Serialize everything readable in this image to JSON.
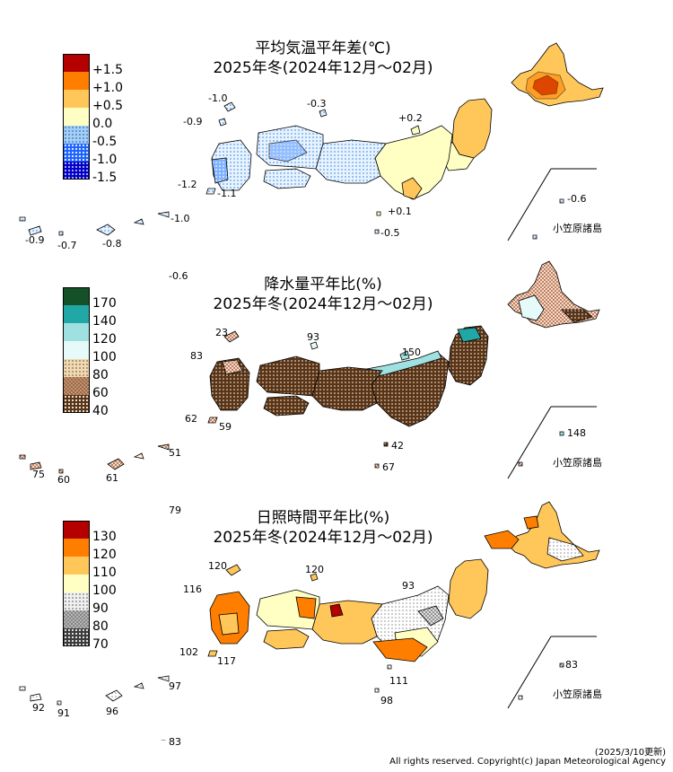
{
  "footer": {
    "date": "(2025/3/10更新)",
    "copyright": "All rights reserved. Copyright(c) Japan Meteorological Agency"
  },
  "ogasawara_label": "小笠原諸島",
  "panels": {
    "temp": {
      "title_line1": "平均気温平年差(℃)",
      "title_line2": "2025年冬(2024年12月〜02月)",
      "legend": [
        {
          "label": "+1.5",
          "color": "#b40000",
          "pattern": "solid"
        },
        {
          "label": "+1.0",
          "color": "#ff7e00",
          "pattern": "solid"
        },
        {
          "label": "+0.5",
          "color": "#ffc659",
          "pattern": "solid"
        },
        {
          "label": "0.0",
          "color": "#ffffc4",
          "pattern": "solid"
        },
        {
          "label": "-0.5",
          "color": "#9fd0ff",
          "pattern": "dots-light"
        },
        {
          "label": "-1.0",
          "color": "#1e64ff",
          "pattern": "dots"
        },
        {
          "label": "-1.5",
          "color": "#0000c8",
          "pattern": "dots-dense"
        }
      ],
      "values": [
        "-1.0",
        "-0.9",
        "-0.3",
        "+0.2",
        "-1.2",
        "-1.1",
        "+0.1",
        "-0.5",
        "-0.9",
        "-0.7",
        "-0.8",
        "-1.0",
        "-0.6",
        "-0.6"
      ]
    },
    "precip": {
      "title_line1": "降水量平年比(%)",
      "title_line2": "2025年冬(2024年12月〜02月)",
      "legend": [
        {
          "label": "170",
          "color": "#145028",
          "pattern": "solid"
        },
        {
          "label": "140",
          "color": "#22a7a7",
          "pattern": "solid"
        },
        {
          "label": "120",
          "color": "#9fe0e0",
          "pattern": "solid"
        },
        {
          "label": "100",
          "color": "#e6fafa",
          "pattern": "solid"
        },
        {
          "label": "80",
          "color": "#f3d9b0",
          "pattern": "dots-light"
        },
        {
          "label": "60",
          "color": "#c8906a",
          "pattern": "checker"
        },
        {
          "label": "40",
          "color": "#5a3414",
          "pattern": "dots"
        }
      ],
      "values": [
        "23",
        "93",
        "83",
        "150",
        "62",
        "59",
        "42",
        "67",
        "75",
        "60",
        "61",
        "51",
        "148",
        "79"
      ]
    },
    "sun": {
      "title_line1": "日照時間平年比(%)",
      "title_line2": "2025年冬(2024年12月〜02月)",
      "legend": [
        {
          "label": "130",
          "color": "#b40000",
          "pattern": "solid"
        },
        {
          "label": "120",
          "color": "#ff7e00",
          "pattern": "solid"
        },
        {
          "label": "110",
          "color": "#ffc659",
          "pattern": "solid"
        },
        {
          "label": "100",
          "color": "#ffffc4",
          "pattern": "solid"
        },
        {
          "label": "90",
          "color": "#f0f0f0",
          "pattern": "dots-light"
        },
        {
          "label": "80",
          "color": "#b4b4b4",
          "pattern": "checker"
        },
        {
          "label": "70",
          "color": "#3c3c3c",
          "pattern": "dots"
        }
      ],
      "values": [
        "120",
        "120",
        "116",
        "93",
        "102",
        "117",
        "111",
        "98",
        "92",
        "91",
        "96",
        "97",
        "83",
        "83"
      ]
    }
  }
}
